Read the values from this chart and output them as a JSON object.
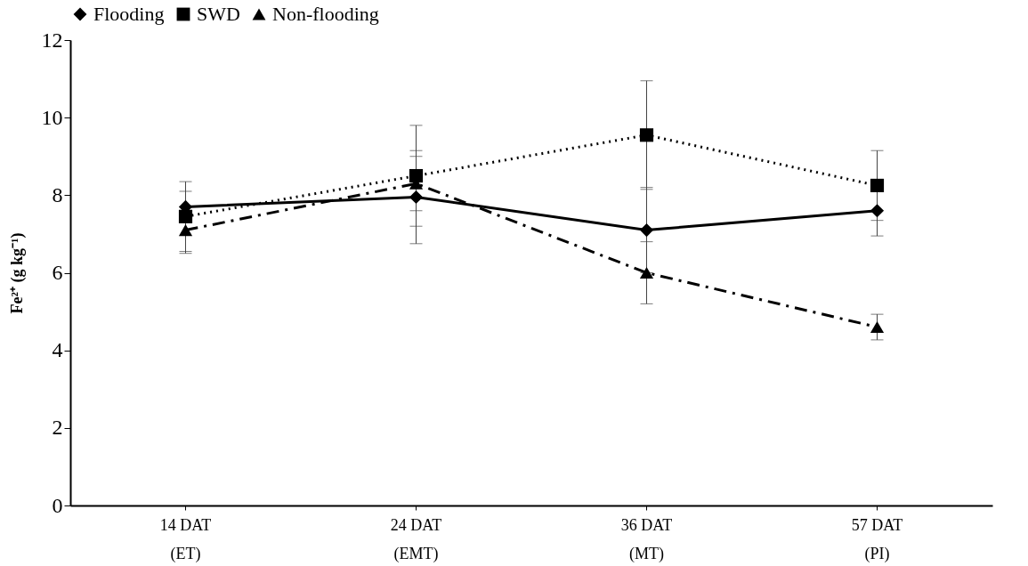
{
  "chart_data": {
    "type": "line",
    "categories": [
      "14 DAT\n(ET)",
      "24 DAT\n(EMT)",
      "36 DAT\n(MT)",
      "57 DAT\n(PI)"
    ],
    "ylabel": "Fe²⁺ (g kg⁻¹)",
    "ylim": [
      0,
      12
    ],
    "yticks": [
      0,
      2,
      4,
      6,
      8,
      10,
      12
    ],
    "grid": false,
    "legend": "top",
    "series": [
      {
        "name": "Flooding",
        "color": "#000000",
        "marker": "diamond",
        "line_style": "solid",
        "values": [
          7.7,
          7.95,
          7.1,
          7.6
        ],
        "errors": [
          0.4,
          1.2,
          1.1,
          0.65
        ]
      },
      {
        "name": "SWD",
        "color": "#000000",
        "marker": "square",
        "line_style": "dotted",
        "values": [
          7.45,
          8.5,
          9.55,
          8.25
        ],
        "errors": [
          0.9,
          1.3,
          1.4,
          0.9
        ]
      },
      {
        "name": "Non-flooding",
        "color": "#000000",
        "marker": "triangle",
        "line_style": "dashdot",
        "values": [
          7.1,
          8.3,
          6.0,
          4.6
        ],
        "errors": [
          0.6,
          0.7,
          0.8,
          0.33
        ]
      }
    ]
  }
}
